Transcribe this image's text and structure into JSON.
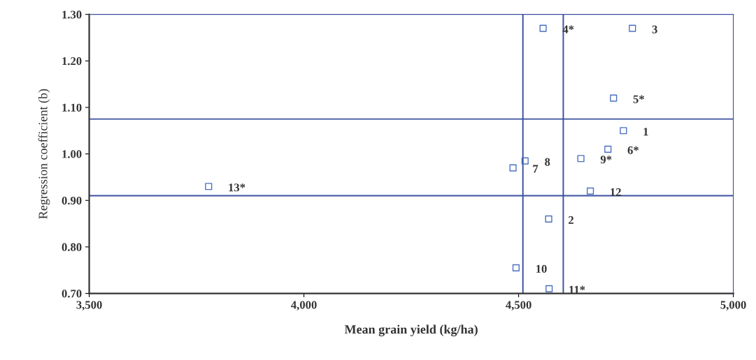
{
  "chart_data": {
    "type": "scatter",
    "xlabel": "Mean grain yield (kg/ha)",
    "ylabel": "Regression coefficient (b)",
    "x": [
      4744,
      4570,
      4765,
      4557,
      4721,
      4708,
      4487,
      4515,
      4645,
      4494,
      4571,
      4667,
      3778
    ],
    "values": [
      1.05,
      0.86,
      1.27,
      1.27,
      1.12,
      1.01,
      0.97,
      0.985,
      0.99,
      0.755,
      0.71,
      0.92,
      0.93
    ],
    "color": "#4a6fc0",
    "marker": "square",
    "grid": false,
    "legend": false,
    "xlim": [
      3500,
      5000
    ],
    "ylim": [
      0.7,
      1.3
    ],
    "xticks": [
      {
        "value": 3500,
        "label": "3,500"
      },
      {
        "value": 4000,
        "label": "4,000"
      },
      {
        "value": 4500,
        "label": "4,500"
      },
      {
        "value": 5000,
        "label": "5,000"
      }
    ],
    "yticks": [
      {
        "value": 0.7,
        "label": "0.70"
      },
      {
        "value": 0.8,
        "label": "0.80"
      },
      {
        "value": 0.9,
        "label": "0.90"
      },
      {
        "value": 1.0,
        "label": "1.00"
      },
      {
        "value": 1.1,
        "label": "1.10"
      },
      {
        "value": 1.2,
        "label": "1.20"
      },
      {
        "value": 1.3,
        "label": "1.30"
      }
    ],
    "ref_lines": [
      {
        "axis": "x",
        "value": 4510,
        "color": "#3b4fa0"
      },
      {
        "axis": "x",
        "value": 4604,
        "color": "#3b4fa0"
      },
      {
        "axis": "y",
        "value": 1.075,
        "color": "#3b4fa0"
      },
      {
        "axis": "y",
        "value": 0.91,
        "color": "#3b4fa0"
      }
    ],
    "annotations": [
      {
        "text": "1",
        "x": 4744,
        "y": 1.05
      },
      {
        "text": "2",
        "x": 4570,
        "y": 0.86
      },
      {
        "text": "3",
        "x": 4765,
        "y": 1.27
      },
      {
        "text": "4*",
        "x": 4557,
        "y": 1.27
      },
      {
        "text": "5*",
        "x": 4721,
        "y": 1.12
      },
      {
        "text": "6*",
        "x": 4708,
        "y": 1.01
      },
      {
        "text": "7",
        "x": 4487,
        "y": 0.97
      },
      {
        "text": "8",
        "x": 4515,
        "y": 0.985
      },
      {
        "text": "9*",
        "x": 4645,
        "y": 0.99
      },
      {
        "text": "10",
        "x": 4494,
        "y": 0.755
      },
      {
        "text": "11*",
        "x": 4571,
        "y": 0.71
      },
      {
        "text": "12",
        "x": 4667,
        "y": 0.92
      },
      {
        "text": "13*",
        "x": 3778,
        "y": 0.93
      }
    ]
  }
}
